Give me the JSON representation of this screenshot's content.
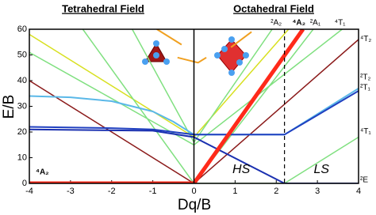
{
  "chart_data": {
    "type": "line",
    "titles": [
      "Tetrahedral Field",
      "Octahedral Field"
    ],
    "x_label": "Dq/B",
    "y_label": "E/B",
    "xlim": [
      -4,
      4
    ],
    "ylim": [
      0,
      60
    ],
    "xticks": [
      -4,
      -3,
      -2,
      -1,
      0,
      1,
      2,
      3,
      4
    ],
    "yticks": [
      0,
      10,
      20,
      30,
      40,
      50,
      60
    ],
    "grid": false,
    "vline_x": 2.2,
    "series": [
      {
        "color": "#8b1a1a",
        "width": 1.5,
        "x": [
          -4,
          0,
          4
        ],
        "values": [
          40,
          0,
          56
        ]
      },
      {
        "color": "#d8e020",
        "width": 1.5,
        "x": [
          -4,
          0,
          2.3
        ],
        "values": [
          58,
          18,
          60
        ]
      },
      {
        "color": "#80e080",
        "width": 1.5,
        "x": [
          -4,
          -2,
          -1,
          0,
          3.6
        ],
        "values": [
          51,
          33,
          24,
          15,
          60
        ]
      },
      {
        "color": "#80e080",
        "width": 1.5,
        "x": [
          -2.7,
          0,
          2.9
        ],
        "values": [
          60,
          0,
          60
        ]
      },
      {
        "color": "#80e080",
        "width": 1.5,
        "x": [
          -1.5,
          0,
          1.9
        ],
        "values": [
          60,
          16,
          60
        ]
      },
      {
        "color": "#80e080",
        "width": 1.5,
        "x": [
          0,
          2.2,
          4
        ],
        "values": [
          0,
          0,
          18
        ]
      },
      {
        "color": "#5ab8e8",
        "width": 2,
        "x": [
          -4,
          -3,
          -2,
          -1,
          -0.5,
          0,
          2.2,
          4
        ],
        "values": [
          34,
          33.5,
          32,
          28,
          24,
          19,
          19,
          37
        ]
      },
      {
        "color": "#2040c0",
        "width": 2,
        "x": [
          -4,
          -2,
          -1,
          0,
          2.2,
          4
        ],
        "values": [
          22,
          21.5,
          21,
          19,
          19,
          36
        ]
      },
      {
        "color": "#1a30b0",
        "width": 2,
        "x": [
          -4,
          -1,
          0,
          2.2,
          4
        ],
        "values": [
          21,
          20.5,
          18,
          0,
          0
        ]
      },
      {
        "color": "#f0a020",
        "width": 2,
        "x": [
          -0.9,
          -0.3,
          null,
          -0.4,
          0.1,
          0.3,
          null,
          0.9,
          1.4
        ],
        "values": [
          60,
          54,
          null,
          49,
          47,
          49,
          null,
          53,
          59
        ]
      },
      {
        "color": "#ff2a1a",
        "width": 5,
        "x": [
          -4,
          0,
          2.65
        ],
        "values": [
          0,
          0,
          60
        ]
      }
    ],
    "term_labels": [
      "⁴T₂",
      "²T₂",
      "²T₁",
      "⁴T₁",
      "²E"
    ],
    "top_labels": [
      "²A₂",
      "⁴A₂",
      "²A₁",
      "⁴T₁"
    ],
    "ground_label": "⁴A₂",
    "annotations": [
      "HS",
      "LS"
    ]
  }
}
